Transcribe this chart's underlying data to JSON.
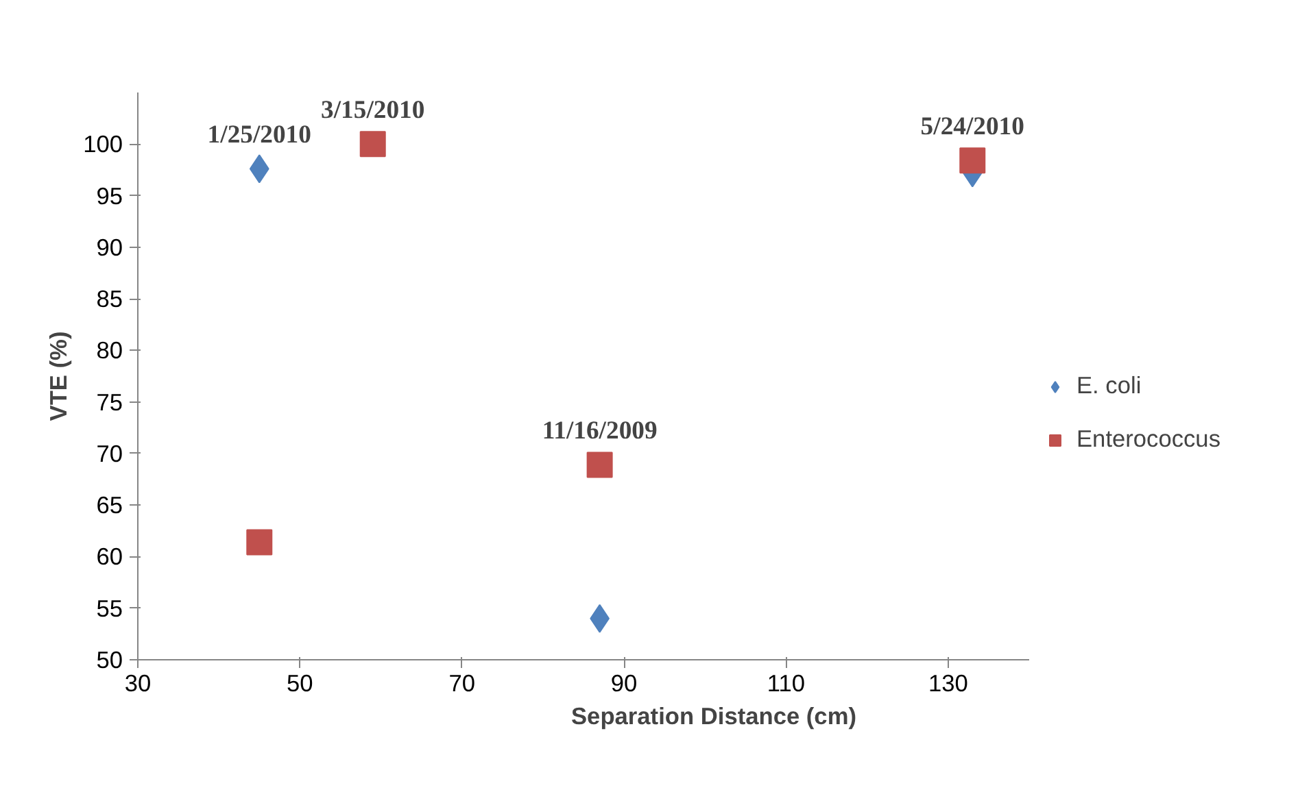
{
  "chart_data": {
    "type": "scatter",
    "xlabel": "Separation Distance (cm)",
    "ylabel": "VTE (%)",
    "series": [
      {
        "name": "E. coli",
        "color": "#4f81bd",
        "marker": "diamond",
        "x": [
          45,
          87,
          133
        ],
        "values": [
          97.6,
          54.0,
          97.2
        ]
      },
      {
        "name": "Enterococcus",
        "color": "#c0504d",
        "marker": "square",
        "x": [
          45,
          59,
          87,
          133
        ],
        "values": [
          61.4,
          100,
          68.9,
          98.4
        ]
      }
    ],
    "annotations": [
      {
        "text": "1/25/2010",
        "x": 45,
        "y": 97.6
      },
      {
        "text": "3/15/2010",
        "x": 59,
        "y": 100
      },
      {
        "text": "11/16/2009",
        "x": 87,
        "y": 68.9
      },
      {
        "text": "5/24/2010",
        "x": 133,
        "y": 98.4
      }
    ],
    "xlim": [
      30,
      140
    ],
    "xticks": [
      30,
      50,
      70,
      90,
      110,
      130
    ],
    "ylim": [
      50,
      105
    ],
    "yticks": [
      50,
      55,
      60,
      65,
      70,
      75,
      80,
      85,
      90,
      95,
      100
    ],
    "grid": false,
    "legend": "right"
  }
}
